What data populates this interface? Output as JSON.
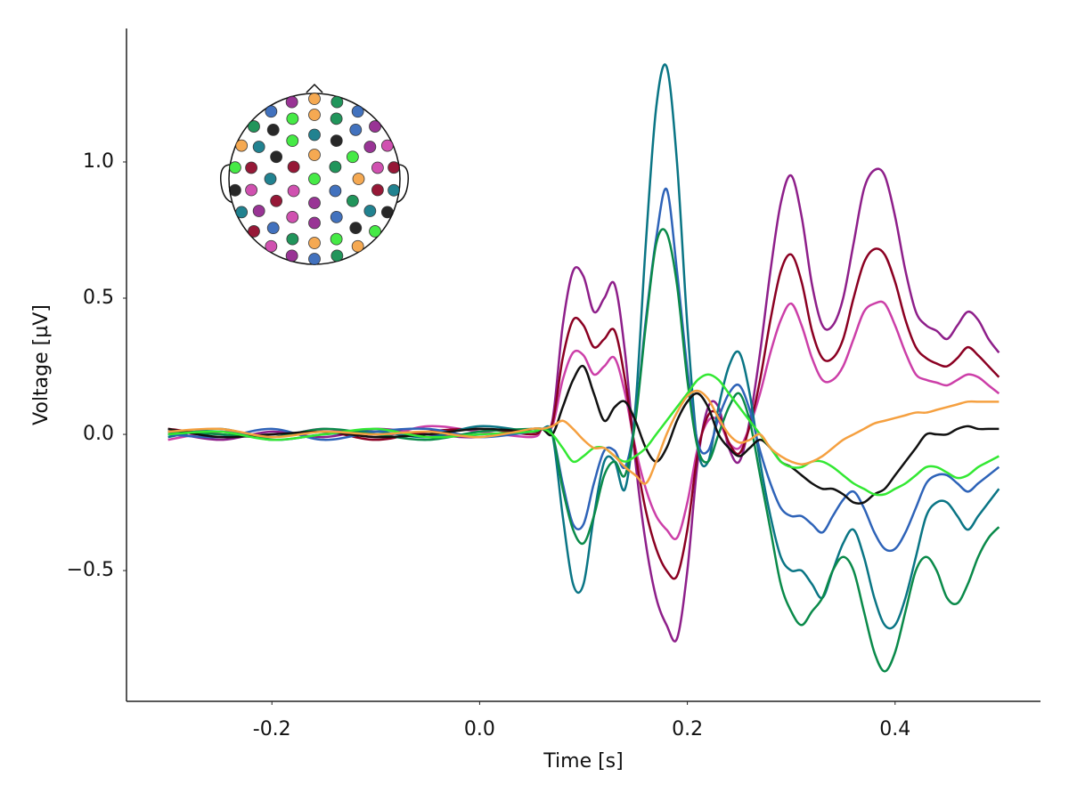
{
  "chart_data": {
    "type": "line",
    "xlabel": "Time [s]",
    "ylabel": "Voltage [µV]",
    "xlim": [
      -0.34,
      0.54
    ],
    "ylim": [
      -0.98,
      1.49
    ],
    "xticks": [
      {
        "value": -0.2,
        "label": "-0.2"
      },
      {
        "value": 0,
        "label": "0.0"
      },
      {
        "value": 0.2,
        "label": "0.2"
      },
      {
        "value": 0.4,
        "label": "0.4"
      }
    ],
    "yticks": [
      {
        "value": -0.5,
        "label": "−0.5"
      },
      {
        "value": 0,
        "label": "0.0"
      },
      0.5,
      {
        "value": 1,
        "label": "1.0"
      }
    ],
    "grid": false,
    "x": [
      -0.3,
      -0.25,
      -0.2,
      -0.15,
      -0.1,
      -0.05,
      0.0,
      0.05,
      0.06,
      0.07,
      0.08,
      0.09,
      0.1,
      0.11,
      0.12,
      0.13,
      0.14,
      0.15,
      0.16,
      0.17,
      0.18,
      0.19,
      0.2,
      0.21,
      0.22,
      0.23,
      0.24,
      0.25,
      0.26,
      0.27,
      0.28,
      0.29,
      0.3,
      0.31,
      0.32,
      0.33,
      0.34,
      0.35,
      0.36,
      0.37,
      0.38,
      0.39,
      0.4,
      0.41,
      0.42,
      0.43,
      0.44,
      0.45,
      0.46,
      0.47,
      0.48,
      0.49,
      0.5
    ],
    "series": [
      {
        "color": "#8e1f8a",
        "values": [
          0.01,
          -0.02,
          0.01,
          -0.01,
          0.02,
          0.0,
          -0.01,
          0.02,
          0.02,
          0.05,
          0.4,
          0.6,
          0.58,
          0.45,
          0.5,
          0.55,
          0.3,
          -0.1,
          -0.4,
          -0.6,
          -0.7,
          -0.75,
          -0.5,
          -0.1,
          0.1,
          0.1,
          -0.05,
          -0.1,
          0.05,
          0.3,
          0.6,
          0.85,
          0.95,
          0.8,
          0.55,
          0.4,
          0.4,
          0.5,
          0.7,
          0.9,
          0.97,
          0.95,
          0.8,
          0.6,
          0.45,
          0.4,
          0.38,
          0.35,
          0.4,
          0.45,
          0.42,
          0.35,
          0.3
        ]
      },
      {
        "color": "#cc3fa8",
        "values": [
          -0.02,
          0.01,
          -0.01,
          0.02,
          -0.01,
          0.03,
          0.01,
          -0.01,
          0.02,
          0.03,
          0.2,
          0.3,
          0.29,
          0.22,
          0.25,
          0.28,
          0.15,
          -0.05,
          -0.2,
          -0.3,
          -0.35,
          -0.38,
          -0.25,
          -0.05,
          0.05,
          0.05,
          -0.03,
          -0.05,
          0.03,
          0.15,
          0.3,
          0.42,
          0.48,
          0.4,
          0.28,
          0.2,
          0.2,
          0.25,
          0.35,
          0.45,
          0.48,
          0.48,
          0.4,
          0.3,
          0.22,
          0.2,
          0.19,
          0.18,
          0.2,
          0.22,
          0.21,
          0.18,
          0.15
        ]
      },
      {
        "color": "#8b0022",
        "values": [
          0.02,
          0.0,
          -0.01,
          0.01,
          -0.02,
          0.01,
          0.02,
          0.0,
          0.02,
          0.04,
          0.28,
          0.42,
          0.4,
          0.32,
          0.35,
          0.38,
          0.2,
          -0.07,
          -0.28,
          -0.42,
          -0.5,
          -0.52,
          -0.35,
          -0.07,
          0.07,
          0.07,
          -0.03,
          -0.07,
          0.03,
          0.2,
          0.42,
          0.6,
          0.66,
          0.56,
          0.38,
          0.28,
          0.28,
          0.35,
          0.5,
          0.63,
          0.68,
          0.66,
          0.56,
          0.42,
          0.32,
          0.28,
          0.26,
          0.25,
          0.28,
          0.32,
          0.29,
          0.25,
          0.21
        ]
      },
      {
        "color": "#0a7585",
        "values": [
          -0.01,
          0.02,
          -0.02,
          0.0,
          0.01,
          -0.01,
          0.03,
          0.01,
          0.02,
          0.0,
          -0.3,
          -0.55,
          -0.55,
          -0.3,
          -0.1,
          -0.1,
          -0.2,
          0.1,
          0.7,
          1.2,
          1.35,
          1.0,
          0.4,
          -0.05,
          -0.1,
          0.1,
          0.25,
          0.3,
          0.15,
          -0.1,
          -0.3,
          -0.45,
          -0.5,
          -0.5,
          -0.55,
          -0.6,
          -0.5,
          -0.4,
          -0.35,
          -0.45,
          -0.6,
          -0.7,
          -0.7,
          -0.6,
          -0.45,
          -0.3,
          -0.25,
          -0.25,
          -0.3,
          -0.35,
          -0.3,
          -0.25,
          -0.2
        ]
      },
      {
        "color": "#2e63b8",
        "values": [
          0.0,
          -0.01,
          0.02,
          -0.02,
          0.01,
          0.02,
          -0.01,
          0.01,
          0.02,
          0.0,
          -0.18,
          -0.33,
          -0.33,
          -0.18,
          -0.06,
          -0.06,
          -0.12,
          0.06,
          0.42,
          0.72,
          0.9,
          0.6,
          0.24,
          -0.03,
          -0.06,
          0.06,
          0.15,
          0.18,
          0.09,
          -0.06,
          -0.18,
          -0.27,
          -0.3,
          -0.3,
          -0.33,
          -0.36,
          -0.3,
          -0.24,
          -0.21,
          -0.27,
          -0.36,
          -0.42,
          -0.42,
          -0.36,
          -0.27,
          -0.18,
          -0.15,
          -0.15,
          -0.18,
          -0.21,
          -0.18,
          -0.15,
          -0.12
        ]
      },
      {
        "color": "#0a8a4a",
        "values": [
          0.01,
          0.0,
          -0.01,
          0.02,
          0.0,
          -0.02,
          0.01,
          0.02,
          0.02,
          0.0,
          -0.2,
          -0.35,
          -0.4,
          -0.3,
          -0.15,
          -0.1,
          -0.15,
          0.05,
          0.4,
          0.7,
          0.74,
          0.55,
          0.2,
          -0.05,
          -0.1,
          0.0,
          0.1,
          0.15,
          0.05,
          -0.15,
          -0.35,
          -0.55,
          -0.65,
          -0.7,
          -0.65,
          -0.6,
          -0.5,
          -0.45,
          -0.5,
          -0.65,
          -0.8,
          -0.87,
          -0.8,
          -0.65,
          -0.5,
          -0.45,
          -0.5,
          -0.6,
          -0.62,
          -0.55,
          -0.45,
          -0.38,
          -0.34
        ]
      },
      {
        "color": "#111111",
        "values": [
          0.02,
          -0.01,
          0.0,
          0.01,
          -0.01,
          0.0,
          0.02,
          0.01,
          0.02,
          0.0,
          0.1,
          0.2,
          0.25,
          0.15,
          0.05,
          0.1,
          0.12,
          0.05,
          -0.05,
          -0.1,
          -0.05,
          0.05,
          0.12,
          0.15,
          0.1,
          0.0,
          -0.05,
          -0.08,
          -0.05,
          -0.02,
          -0.05,
          -0.1,
          -0.12,
          -0.15,
          -0.18,
          -0.2,
          -0.2,
          -0.22,
          -0.25,
          -0.25,
          -0.22,
          -0.2,
          -0.15,
          -0.1,
          -0.05,
          0.0,
          0.0,
          0.0,
          0.02,
          0.03,
          0.02,
          0.02,
          0.02
        ]
      },
      {
        "color": "#33e833",
        "values": [
          0.0,
          0.01,
          -0.02,
          0.0,
          0.02,
          -0.01,
          0.0,
          0.01,
          0.02,
          0.0,
          -0.05,
          -0.1,
          -0.08,
          -0.05,
          -0.05,
          -0.08,
          -0.1,
          -0.08,
          -0.05,
          0.0,
          0.05,
          0.1,
          0.15,
          0.2,
          0.22,
          0.2,
          0.15,
          0.1,
          0.05,
          0.0,
          -0.05,
          -0.1,
          -0.12,
          -0.12,
          -0.1,
          -0.1,
          -0.12,
          -0.15,
          -0.18,
          -0.2,
          -0.22,
          -0.22,
          -0.2,
          -0.18,
          -0.15,
          -0.12,
          -0.12,
          -0.14,
          -0.16,
          -0.15,
          -0.12,
          -0.1,
          -0.08
        ]
      },
      {
        "color": "#f5a040",
        "values": [
          0.01,
          0.02,
          -0.01,
          0.01,
          0.0,
          0.01,
          -0.01,
          0.02,
          0.02,
          0.03,
          0.05,
          0.02,
          -0.02,
          -0.05,
          -0.05,
          -0.08,
          -0.12,
          -0.15,
          -0.18,
          -0.1,
          0.0,
          0.08,
          0.14,
          0.16,
          0.13,
          0.06,
          0.0,
          -0.03,
          -0.02,
          0.0,
          -0.05,
          -0.08,
          -0.1,
          -0.11,
          -0.1,
          -0.08,
          -0.05,
          -0.02,
          0.0,
          0.02,
          0.04,
          0.05,
          0.06,
          0.07,
          0.08,
          0.08,
          0.09,
          0.1,
          0.11,
          0.12,
          0.12,
          0.12,
          0.12
        ]
      }
    ]
  }
}
